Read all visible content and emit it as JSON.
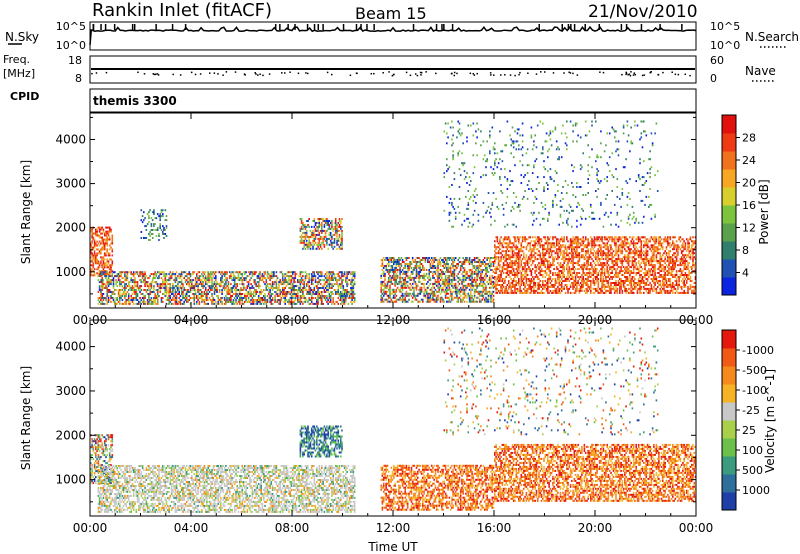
{
  "header": {
    "station": "Rankin Inlet (fitACF)",
    "beam": "Beam 15",
    "date": "21/Nov/2010"
  },
  "noise_panel": {
    "left_label": "N.Sky",
    "left_ticks": [
      "10^5",
      "10^0"
    ],
    "right_label": "N.Search",
    "right_ticks": [
      "10^5",
      "10^0"
    ]
  },
  "freq_panel": {
    "left_label_1": "Freq.",
    "left_label_2": "[MHz]",
    "left_ticks": [
      "18",
      "8"
    ],
    "right_label": "Nave",
    "right_ticks": [
      "60",
      "0"
    ]
  },
  "cpid_panel": {
    "label": "CPID",
    "value": "themis 3300"
  },
  "x_axis": {
    "label": "Time UT",
    "ticks": [
      "00:00",
      "04:00",
      "08:00",
      "12:00",
      "16:00",
      "20:00",
      "00:00"
    ]
  },
  "chart_data": [
    {
      "type": "heatmap",
      "title": "",
      "xlabel": "Time UT",
      "ylabel": "Slant Range [km]",
      "x_ticks_hours": [
        0,
        4,
        8,
        12,
        16,
        20,
        24
      ],
      "y_ticks": [
        1000,
        2000,
        3000,
        4000
      ],
      "ylim": [
        180,
        4600
      ],
      "colorbar": {
        "label": "Power [dB]",
        "ticks": [
          "4",
          "8",
          "12",
          "16",
          "20",
          "24",
          "28"
        ],
        "colors": [
          "#0b24e0",
          "#1f52b4",
          "#2f7f6c",
          "#5aa14b",
          "#7cc43d",
          "#d6cf2c",
          "#f6a825",
          "#f0721c",
          "#ef3b14",
          "#e3110d"
        ]
      },
      "echo_regions": [
        {
          "t": [
            0.0,
            0.9
          ],
          "r": [
            900,
            2000
          ],
          "level": "high"
        },
        {
          "t": [
            0.3,
            10.5
          ],
          "r": [
            250,
            1000
          ],
          "level": "mixed"
        },
        {
          "t": [
            2.0,
            3.0
          ],
          "r": [
            1700,
            2400
          ],
          "level": "low"
        },
        {
          "t": [
            8.3,
            10.0
          ],
          "r": [
            1500,
            2200
          ],
          "level": "mixed"
        },
        {
          "t": [
            11.5,
            16.0
          ],
          "r": [
            300,
            1300
          ],
          "level": "mixed"
        },
        {
          "t": [
            16.0,
            24.0
          ],
          "r": [
            500,
            1800
          ],
          "level": "high"
        },
        {
          "t": [
            14.0,
            22.5
          ],
          "r": [
            2000,
            4400
          ],
          "level": "sparse"
        }
      ]
    },
    {
      "type": "heatmap",
      "title": "",
      "xlabel": "Time UT",
      "ylabel": "Slant Range [km]",
      "x_ticks_hours": [
        0,
        4,
        8,
        12,
        16,
        20,
        24
      ],
      "y_ticks": [
        1000,
        2000,
        3000,
        4000
      ],
      "ylim": [
        180,
        4600
      ],
      "colorbar": {
        "label": "Velocity [m s^-1]",
        "ticks": [
          "1000",
          "500",
          "100",
          "25",
          "-25",
          "-100",
          "-500",
          "-1000"
        ],
        "colors": [
          "#1f3fa8",
          "#2d6e9a",
          "#3b9b7e",
          "#6bc04a",
          "#a8d04a",
          "#c8c8c8",
          "#f5b325",
          "#f58a1c",
          "#f15a15",
          "#e5180f"
        ]
      },
      "echo_regions": [
        {
          "t": [
            0.0,
            0.9
          ],
          "r": [
            900,
            2000
          ],
          "level": "mixed"
        },
        {
          "t": [
            0.3,
            10.5
          ],
          "r": [
            250,
            1300
          ],
          "level": "grey"
        },
        {
          "t": [
            8.3,
            10.0
          ],
          "r": [
            1500,
            2200
          ],
          "level": "positive"
        },
        {
          "t": [
            11.5,
            16.0
          ],
          "r": [
            300,
            1300
          ],
          "level": "negative"
        },
        {
          "t": [
            16.0,
            24.0
          ],
          "r": [
            500,
            1800
          ],
          "level": "negative"
        },
        {
          "t": [
            14.0,
            22.5
          ],
          "r": [
            2000,
            4400
          ],
          "level": "sparse"
        }
      ]
    }
  ]
}
